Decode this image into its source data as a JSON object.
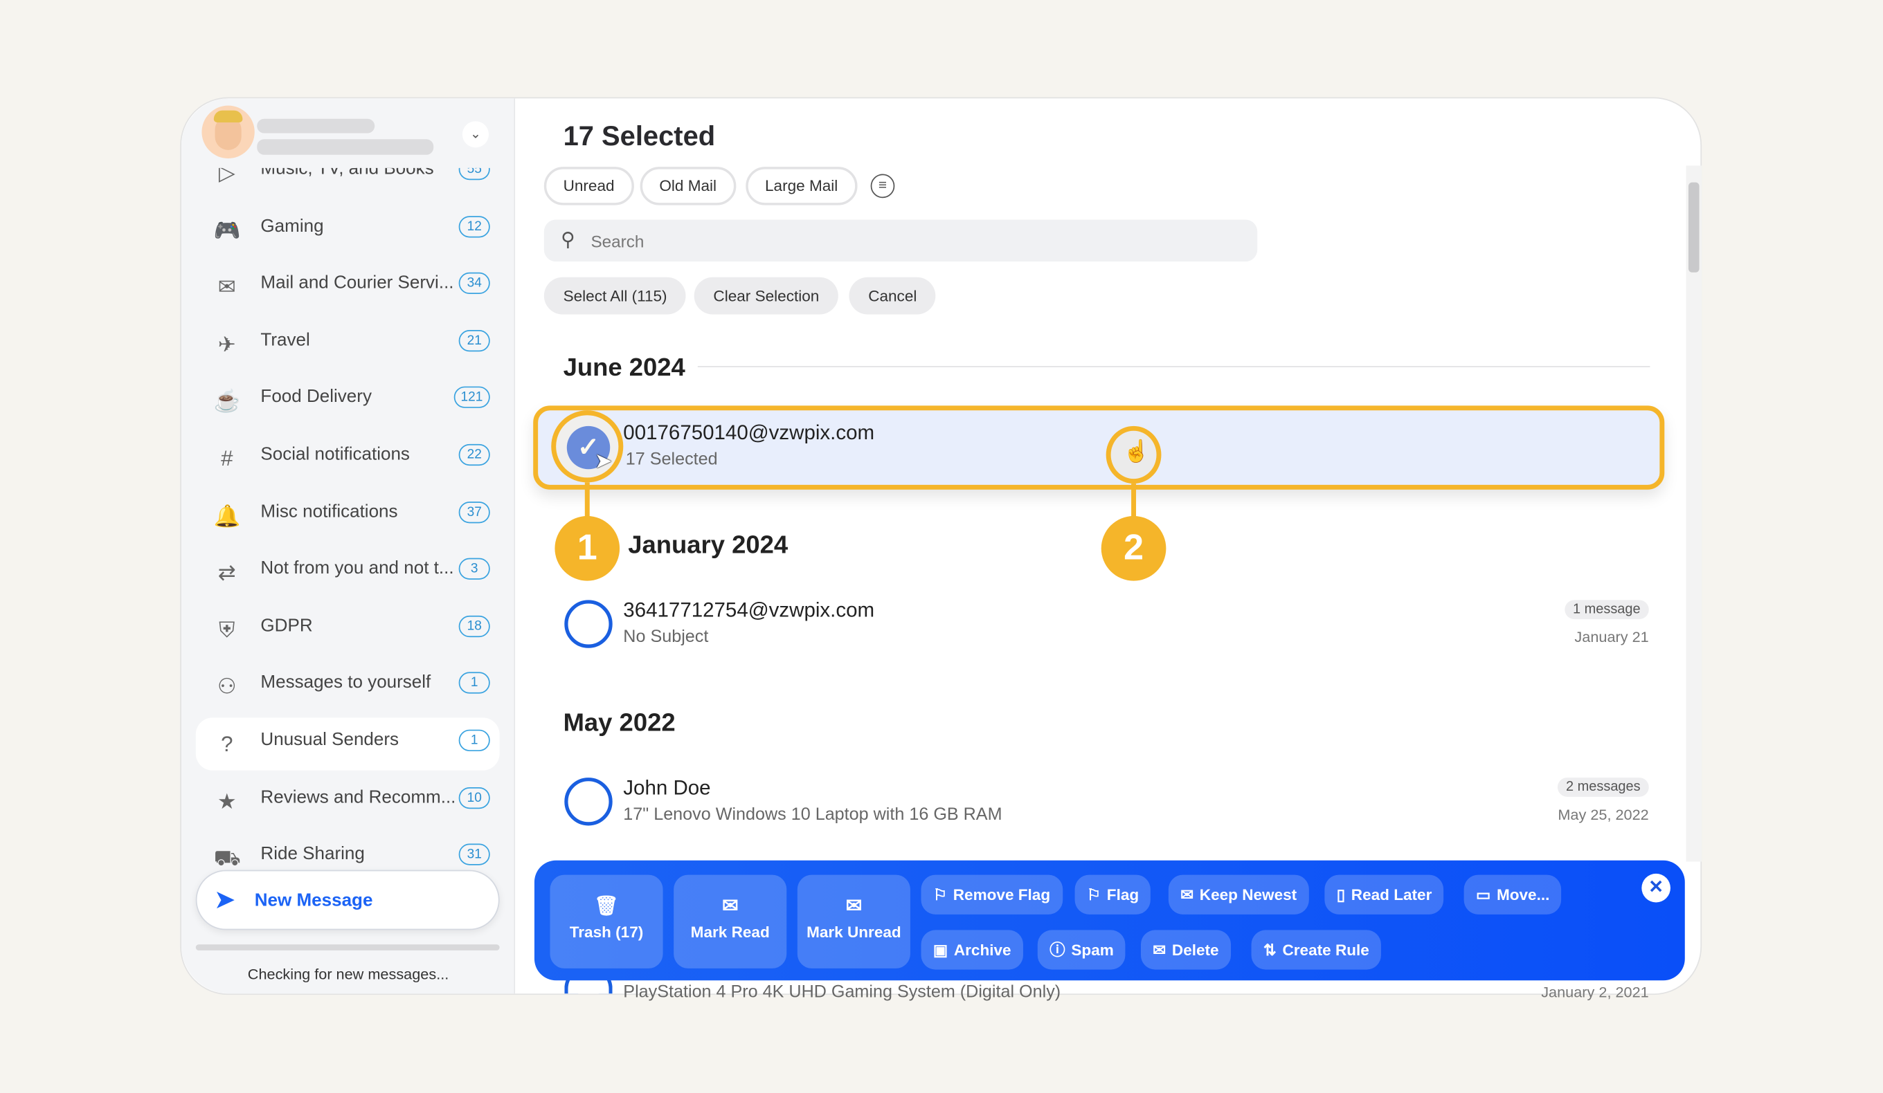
{
  "sidebar": {
    "items": [
      {
        "label": "Music, TV, and Books",
        "count": "55",
        "icon": "tv-icon"
      },
      {
        "label": "Gaming",
        "count": "12",
        "icon": "gamepad-icon"
      },
      {
        "label": "Mail and Courier Servi...",
        "count": "34",
        "icon": "mailbox-icon"
      },
      {
        "label": "Travel",
        "count": "21",
        "icon": "plane-icon"
      },
      {
        "label": "Food Delivery",
        "count": "121",
        "icon": "food-icon"
      },
      {
        "label": "Social notifications",
        "count": "22",
        "icon": "hashtag-icon"
      },
      {
        "label": "Misc notifications",
        "count": "37",
        "icon": "bell-icon"
      },
      {
        "label": "Not from you and not t...",
        "count": "3",
        "icon": "arrows-icon"
      },
      {
        "label": "GDPR",
        "count": "18",
        "icon": "shield-icon"
      },
      {
        "label": "Messages to yourself",
        "count": "1",
        "icon": "person-icon"
      },
      {
        "label": "Unusual Senders",
        "count": "1",
        "icon": "question-icon"
      },
      {
        "label": "Reviews and Recomm...",
        "count": "10",
        "icon": "stars-icon"
      },
      {
        "label": "Ride Sharing",
        "count": "31",
        "icon": "car-icon"
      }
    ],
    "new_message": "New Message",
    "status": "Checking for new messages..."
  },
  "main": {
    "title": "17 Selected",
    "filters": [
      "Unread",
      "Old Mail",
      "Large Mail"
    ],
    "search_placeholder": "Search",
    "select_all": "Select All (115)",
    "clear_selection": "Clear Selection",
    "cancel": "Cancel",
    "groups": [
      {
        "heading": "June 2024",
        "rows": [
          {
            "sender": "00176750140@vzwpix.com",
            "subject": "17 Selected",
            "selected": true
          }
        ]
      },
      {
        "heading": "January 2024",
        "rows": [
          {
            "sender": "36417712754@vzwpix.com",
            "subject": "No Subject",
            "count": "1 message",
            "date": "January 21"
          }
        ]
      },
      {
        "heading": "May 2022",
        "rows": [
          {
            "sender": "John Doe",
            "subject": "17\" Lenovo Windows 10 Laptop with 16 GB RAM",
            "count": "2 messages",
            "date": "May 25, 2022"
          },
          {
            "sender": "",
            "subject": "PlayStation 4 Pro 4K UHD Gaming System (Digital Only)",
            "date": "January 2, 2021"
          }
        ]
      }
    ]
  },
  "actions": {
    "trash": "Trash (17)",
    "mark_read": "Mark Read",
    "mark_unread": "Mark Unread",
    "remove_flag": "Remove Flag",
    "flag": "Flag",
    "keep_newest": "Keep Newest",
    "read_later": "Read Later",
    "move": "Move...",
    "archive": "Archive",
    "spam": "Spam",
    "delete": "Delete",
    "create_rule": "Create Rule"
  },
  "callouts": [
    "1",
    "2"
  ],
  "colors": {
    "accent": "#1b63f5",
    "callout": "#f5b52a",
    "selected_row": "#e8eefc"
  }
}
